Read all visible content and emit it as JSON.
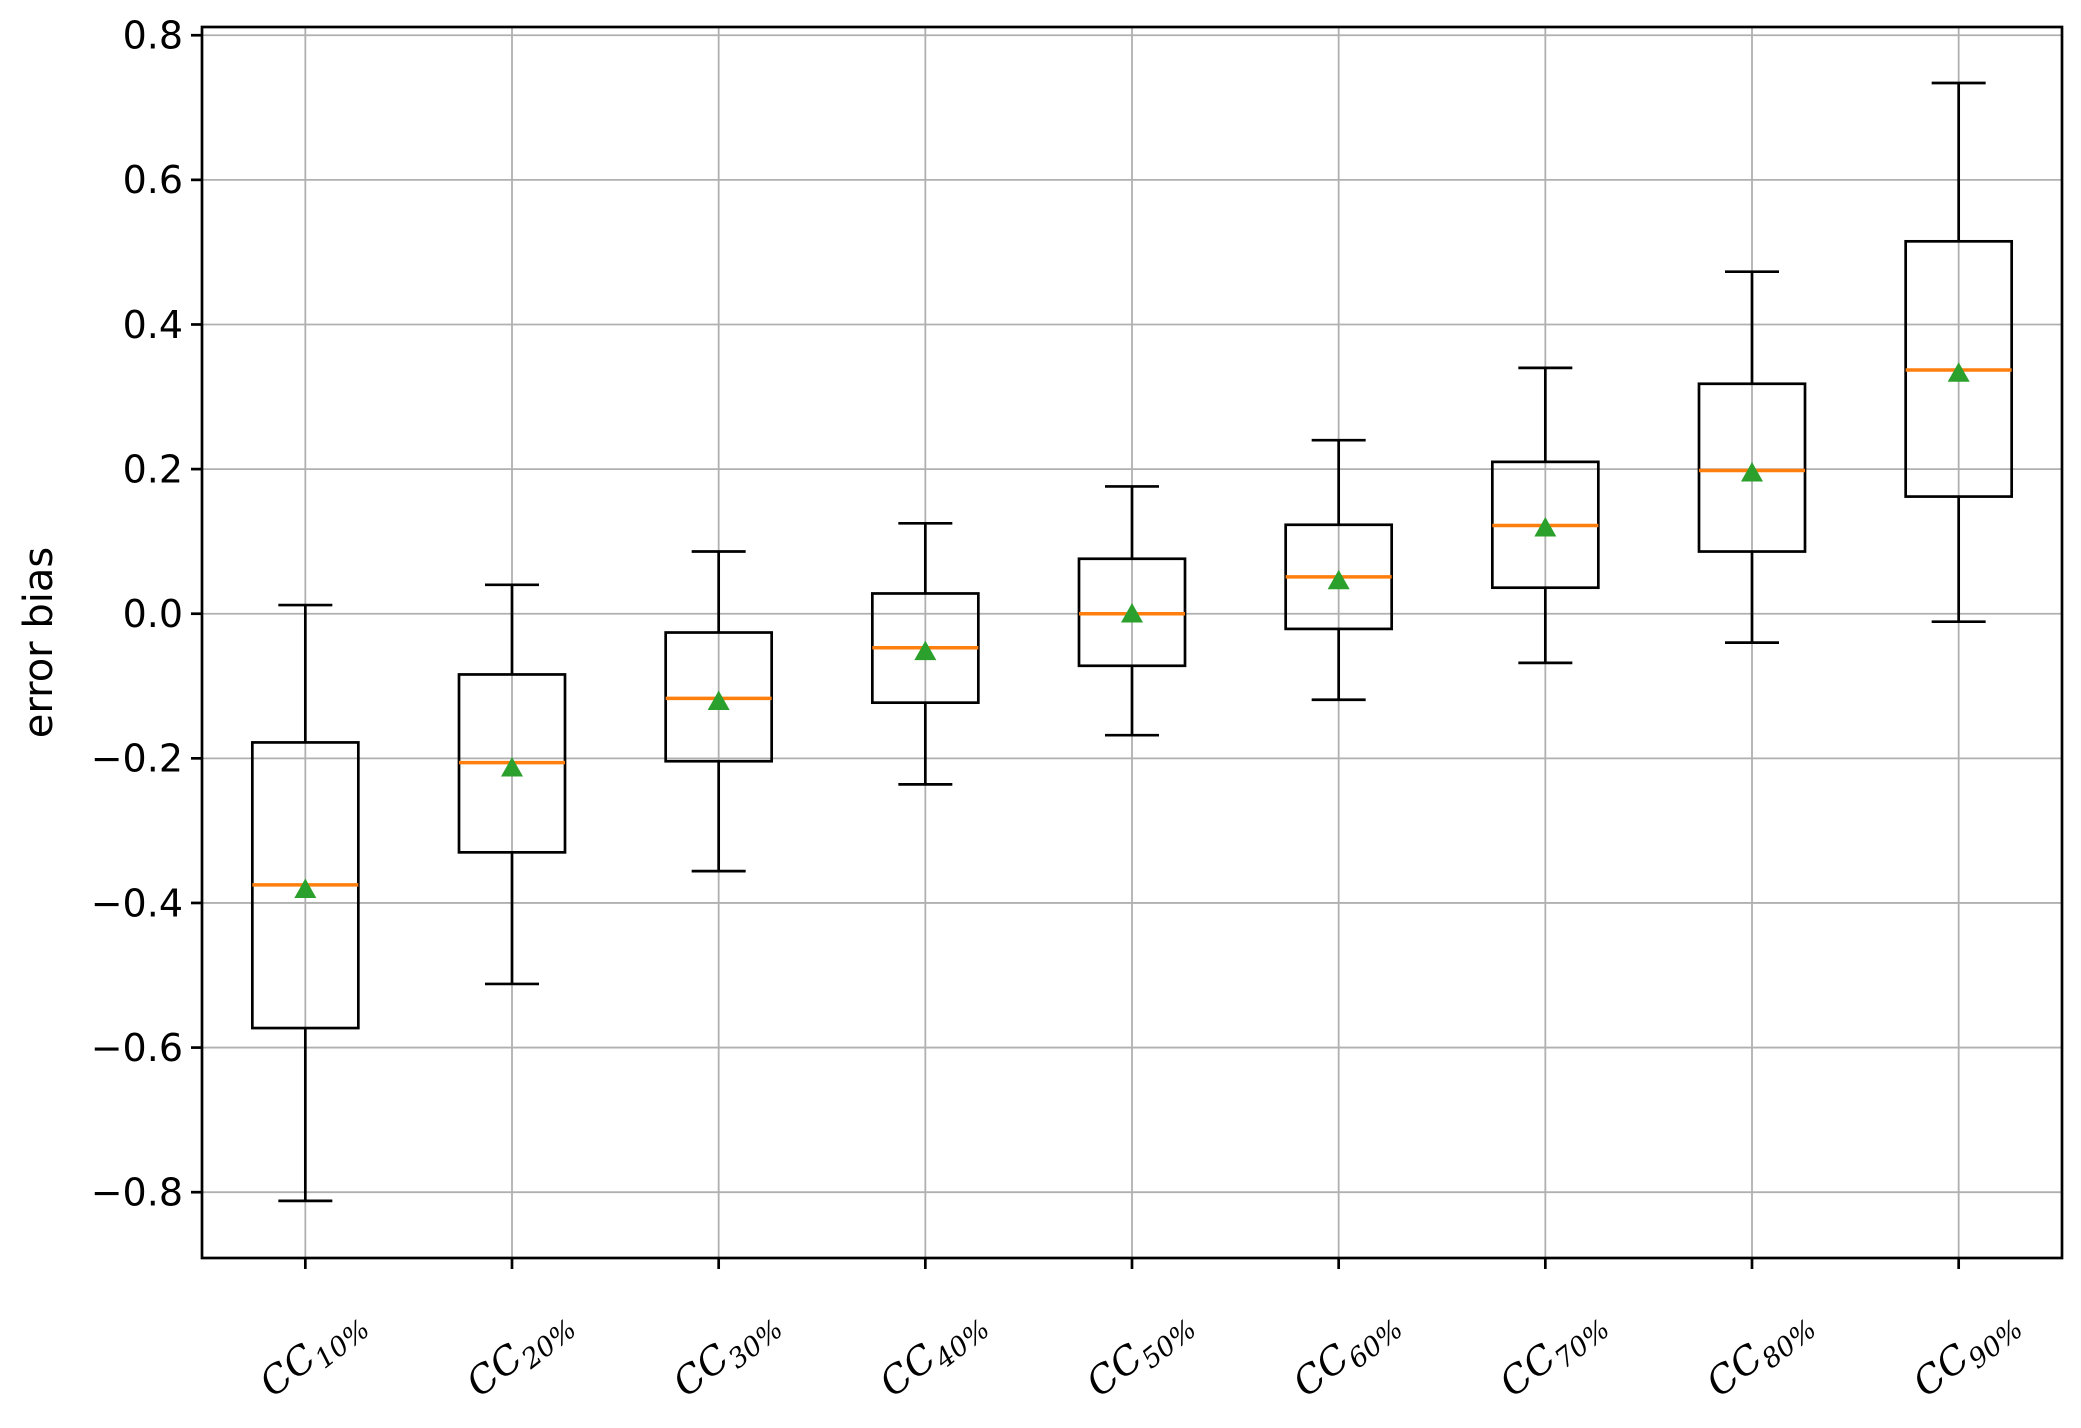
{
  "chart_data": {
    "type": "boxplot",
    "title": "",
    "xlabel": "",
    "ylabel": "error bias",
    "grid": true,
    "legend": "none",
    "ylim": [
      -0.891,
      0.8114
    ],
    "yticks": [
      0.8,
      0.6,
      0.4,
      0.2,
      0.0,
      -0.2,
      -0.4,
      -0.6,
      -0.8
    ],
    "ytick_labels": [
      "0.8",
      "0.6",
      "0.4",
      "0.2",
      "0.0",
      "−0.2",
      "−0.4",
      "−0.6",
      "−0.8"
    ],
    "categories": [
      {
        "base": "CC",
        "sub": "10%",
        "label": "CC10%"
      },
      {
        "base": "CC",
        "sub": "20%",
        "label": "CC20%"
      },
      {
        "base": "CC",
        "sub": "30%",
        "label": "CC30%"
      },
      {
        "base": "CC",
        "sub": "40%",
        "label": "CC40%"
      },
      {
        "base": "CC",
        "sub": "50%",
        "label": "CC50%"
      },
      {
        "base": "CC",
        "sub": "60%",
        "label": "CC60%"
      },
      {
        "base": "CC",
        "sub": "70%",
        "label": "CC70%"
      },
      {
        "base": "CC",
        "sub": "80%",
        "label": "CC80%"
      },
      {
        "base": "CC",
        "sub": "90%",
        "label": "CC90%"
      }
    ],
    "series": [
      {
        "name": "CC10%",
        "whisker_low": -0.812,
        "q1": -0.573,
        "median": -0.375,
        "mean": -0.38,
        "q3": -0.178,
        "whisker_high": 0.012
      },
      {
        "name": "CC20%",
        "whisker_low": -0.512,
        "q1": -0.33,
        "median": -0.206,
        "mean": -0.212,
        "q3": -0.084,
        "whisker_high": 0.04
      },
      {
        "name": "CC30%",
        "whisker_low": -0.356,
        "q1": -0.204,
        "median": -0.117,
        "mean": -0.12,
        "q3": -0.026,
        "whisker_high": 0.086
      },
      {
        "name": "CC40%",
        "whisker_low": -0.236,
        "q1": -0.123,
        "median": -0.047,
        "mean": -0.051,
        "q3": 0.028,
        "whisker_high": 0.125
      },
      {
        "name": "CC50%",
        "whisker_low": -0.168,
        "q1": -0.072,
        "median": 0.0,
        "mean": 0.001,
        "q3": 0.076,
        "whisker_high": 0.176
      },
      {
        "name": "CC60%",
        "whisker_low": -0.119,
        "q1": -0.021,
        "median": 0.051,
        "mean": 0.047,
        "q3": 0.123,
        "whisker_high": 0.24
      },
      {
        "name": "CC70%",
        "whisker_low": -0.068,
        "q1": 0.036,
        "median": 0.122,
        "mean": 0.12,
        "q3": 0.21,
        "whisker_high": 0.34
      },
      {
        "name": "CC80%",
        "whisker_low": -0.04,
        "q1": 0.086,
        "median": 0.198,
        "mean": 0.196,
        "q3": 0.318,
        "whisker_high": 0.473
      },
      {
        "name": "CC90%",
        "whisker_low": -0.011,
        "q1": 0.162,
        "median": 0.337,
        "mean": 0.334,
        "q3": 0.515,
        "whisker_high": 0.734
      }
    ],
    "mean_marker_shape": "triangle-up",
    "colors": {
      "box": "#000000",
      "whisker": "#000000",
      "median": "#ff7f0e",
      "mean_marker": "#2ca02c",
      "grid": "#b0b0b0",
      "spine": "#000000",
      "background": "#ffffff"
    }
  }
}
